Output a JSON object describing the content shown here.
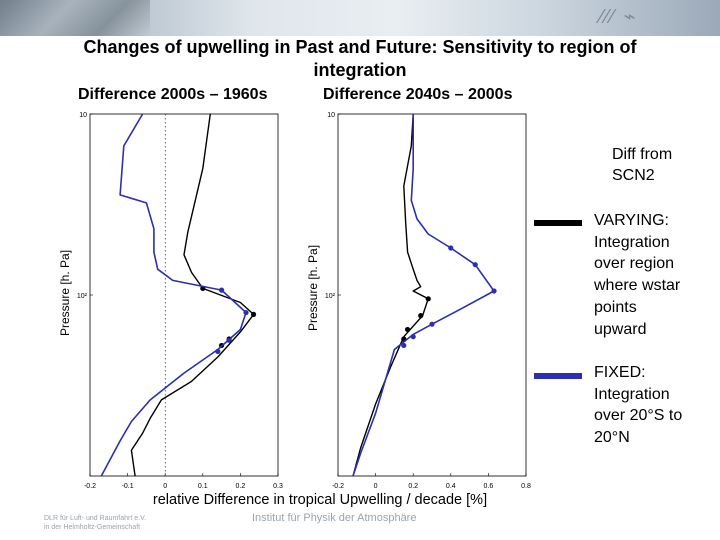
{
  "header": {
    "title_line1": "Changes of upwelling in Past and Future: Sensitivity to region of",
    "title_line2": "integration"
  },
  "panels": {
    "left_title": "Difference 2000s – 1960s",
    "right_title": "Difference 2040s – 2000s",
    "left_ylabel": "Pressure [h. Pa]",
    "right_ylabel": "Pressure [h. Pa]"
  },
  "legend": {
    "heading_line1": "Diff from",
    "heading_line2": "SCN2",
    "varying_lines": [
      "VARYING:",
      "Integration",
      "over region",
      "where wstar",
      "points",
      "upward"
    ],
    "fixed_lines": [
      "FIXED:",
      "Integration",
      "over 20°S to",
      "20°N"
    ],
    "varying_color": "#000000",
    "fixed_color": "#2b2fb0"
  },
  "xlabel": "relative Difference in tropical Upwelling / decade [%]",
  "footer": {
    "logo_line1": "DLR  für Luft- und Raumfahrt e.V.",
    "logo_line2": "in der Helmholtz-Gemeinschaft",
    "institute": "Institut für Physik der Atmosphäre"
  },
  "chart_data": [
    {
      "type": "line",
      "title": "Difference 2000s – 1960s",
      "xlabel": "relative Difference in tropical Upwelling / decade [%]",
      "ylabel": "Pressure [h. Pa]",
      "xlim": [
        -0.2,
        0.3
      ],
      "xticks": [
        "-0.2",
        "-0.1",
        "0",
        "0.1",
        "0.2",
        "0.3"
      ],
      "ylog": true,
      "ylim_inverted": [
        1000,
        10
      ],
      "yticks": [
        "10",
        "10²"
      ],
      "zero_line": true,
      "series": [
        {
          "name": "VARYING",
          "color": "#000000",
          "points": [
            [
              0.12,
              10
            ],
            [
              0.1,
              20
            ],
            [
              0.06,
              45
            ],
            [
              0.05,
              60
            ],
            [
              0.07,
              75
            ],
            [
              0.1,
              92
            ],
            [
              0.2,
              110
            ],
            [
              0.235,
              128
            ],
            [
              0.2,
              160
            ],
            [
              0.14,
              220
            ],
            [
              0.07,
              300
            ],
            [
              -0.01,
              380
            ],
            [
              -0.04,
              480
            ],
            [
              -0.06,
              580
            ],
            [
              -0.09,
              720
            ],
            [
              -0.08,
              1000
            ]
          ],
          "markers": [
            [
              0.1,
              92
            ],
            [
              0.235,
              128
            ],
            [
              0.17,
              175
            ],
            [
              0.15,
              190
            ]
          ]
        },
        {
          "name": "FIXED",
          "color": "#2b2fb0",
          "points": [
            [
              -0.06,
              10
            ],
            [
              -0.11,
              15
            ],
            [
              -0.12,
              28
            ],
            [
              -0.05,
              31
            ],
            [
              -0.03,
              43
            ],
            [
              -0.03,
              58
            ],
            [
              -0.02,
              72
            ],
            [
              0.02,
              83
            ],
            [
              0.15,
              94
            ],
            [
              0.215,
              125
            ],
            [
              0.2,
              155
            ],
            [
              0.14,
              200
            ],
            [
              0.05,
              270
            ],
            [
              -0.04,
              380
            ],
            [
              -0.09,
              500
            ],
            [
              -0.12,
              640
            ],
            [
              -0.17,
              1000
            ]
          ],
          "markers": [
            [
              0.15,
              94
            ],
            [
              0.215,
              125
            ],
            [
              0.17,
              178
            ],
            [
              0.14,
              205
            ]
          ]
        }
      ]
    },
    {
      "type": "line",
      "title": "Difference 2040s – 2000s",
      "xlabel": "relative Difference in tropical Upwelling / decade [%]",
      "ylabel": "Pressure [h. Pa]",
      "xlim": [
        -0.2,
        0.8
      ],
      "xticks": [
        "-0.2",
        "0",
        "0.2",
        "0.4",
        "0.6",
        "0.8"
      ],
      "ylog": true,
      "ylim_inverted": [
        1000,
        10
      ],
      "yticks": [
        "10",
        "10²"
      ],
      "zero_line": false,
      "series": [
        {
          "name": "VARYING",
          "color": "#000000",
          "points": [
            [
              0.2,
              10
            ],
            [
              0.19,
              15
            ],
            [
              0.15,
              25
            ],
            [
              0.16,
              40
            ],
            [
              0.17,
              58
            ],
            [
              0.2,
              72
            ],
            [
              0.22,
              83
            ],
            [
              0.24,
              90
            ],
            [
              0.2,
              95
            ],
            [
              0.28,
              105
            ],
            [
              0.25,
              130
            ],
            [
              0.15,
              170
            ],
            [
              0.08,
              250
            ],
            [
              0.0,
              400
            ],
            [
              -0.08,
              700
            ],
            [
              -0.12,
              1000
            ]
          ],
          "markers": [
            [
              0.28,
              105
            ],
            [
              0.24,
              130
            ],
            [
              0.17,
              155
            ],
            [
              0.15,
              175
            ]
          ]
        },
        {
          "name": "FIXED",
          "color": "#2b2fb0",
          "points": [
            [
              0.2,
              10
            ],
            [
              0.2,
              20
            ],
            [
              0.19,
              30
            ],
            [
              0.22,
              38
            ],
            [
              0.28,
              46
            ],
            [
              0.4,
              55
            ],
            [
              0.53,
              68
            ],
            [
              0.63,
              95
            ],
            [
              0.45,
              120
            ],
            [
              0.3,
              145
            ],
            [
              0.2,
              165
            ],
            [
              0.1,
              200
            ],
            [
              0.05,
              300
            ],
            [
              0.0,
              450
            ],
            [
              -0.08,
              750
            ],
            [
              -0.12,
              1000
            ]
          ],
          "markers": [
            [
              0.4,
              55
            ],
            [
              0.53,
              68
            ],
            [
              0.63,
              95
            ],
            [
              0.3,
              145
            ],
            [
              0.2,
              170
            ],
            [
              0.15,
              190
            ]
          ]
        }
      ]
    }
  ]
}
